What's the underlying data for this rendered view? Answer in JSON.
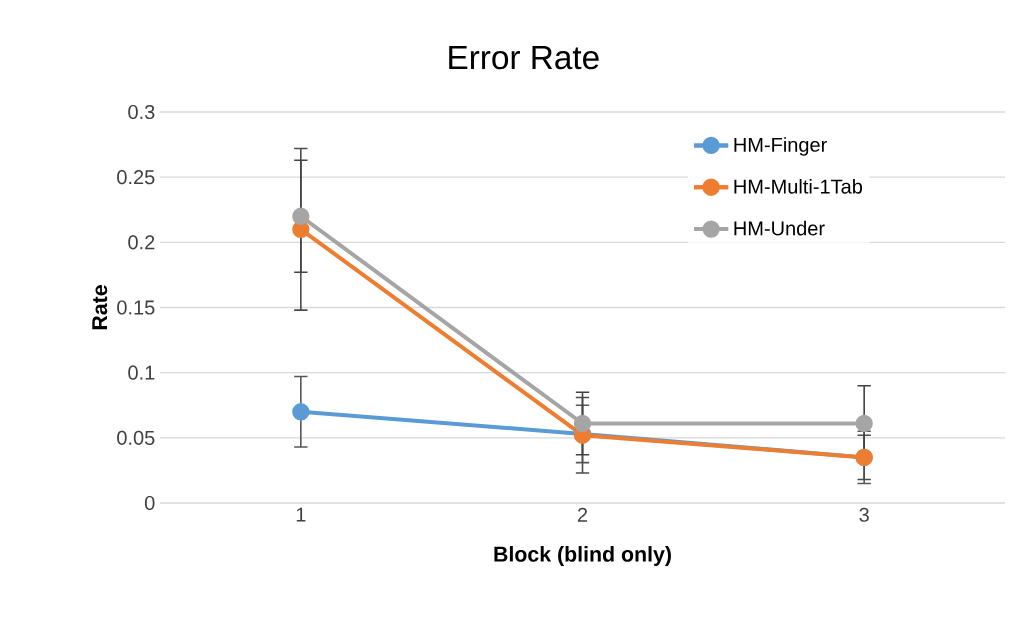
{
  "chart_data": {
    "type": "line",
    "title": "Error Rate",
    "xlabel": "Block (blind only)",
    "ylabel": "Rate",
    "categories": [
      "1",
      "2",
      "3"
    ],
    "series": [
      {
        "name": "HM-Finger",
        "color": "#5b9bd5",
        "values": [
          0.07,
          0.053,
          0.035
        ],
        "errors": [
          0.027,
          0.022,
          0.02
        ]
      },
      {
        "name": "HM-Multi-1Tab",
        "color": "#ed7d31",
        "values": [
          0.21,
          0.052,
          0.035
        ],
        "errors": [
          0.062,
          0.029,
          0.017
        ]
      },
      {
        "name": "HM-Under",
        "color": "#a5a5a5",
        "values": [
          0.22,
          0.061,
          0.061
        ],
        "errors": [
          0.043,
          0.024,
          0.029
        ]
      }
    ],
    "ylim": [
      0,
      0.3
    ],
    "yticks": [
      0,
      0.05,
      0.1,
      0.15,
      0.2,
      0.25,
      0.3
    ],
    "grid": "y",
    "legend": "top right",
    "marker": "circle",
    "line_style": "solid"
  }
}
